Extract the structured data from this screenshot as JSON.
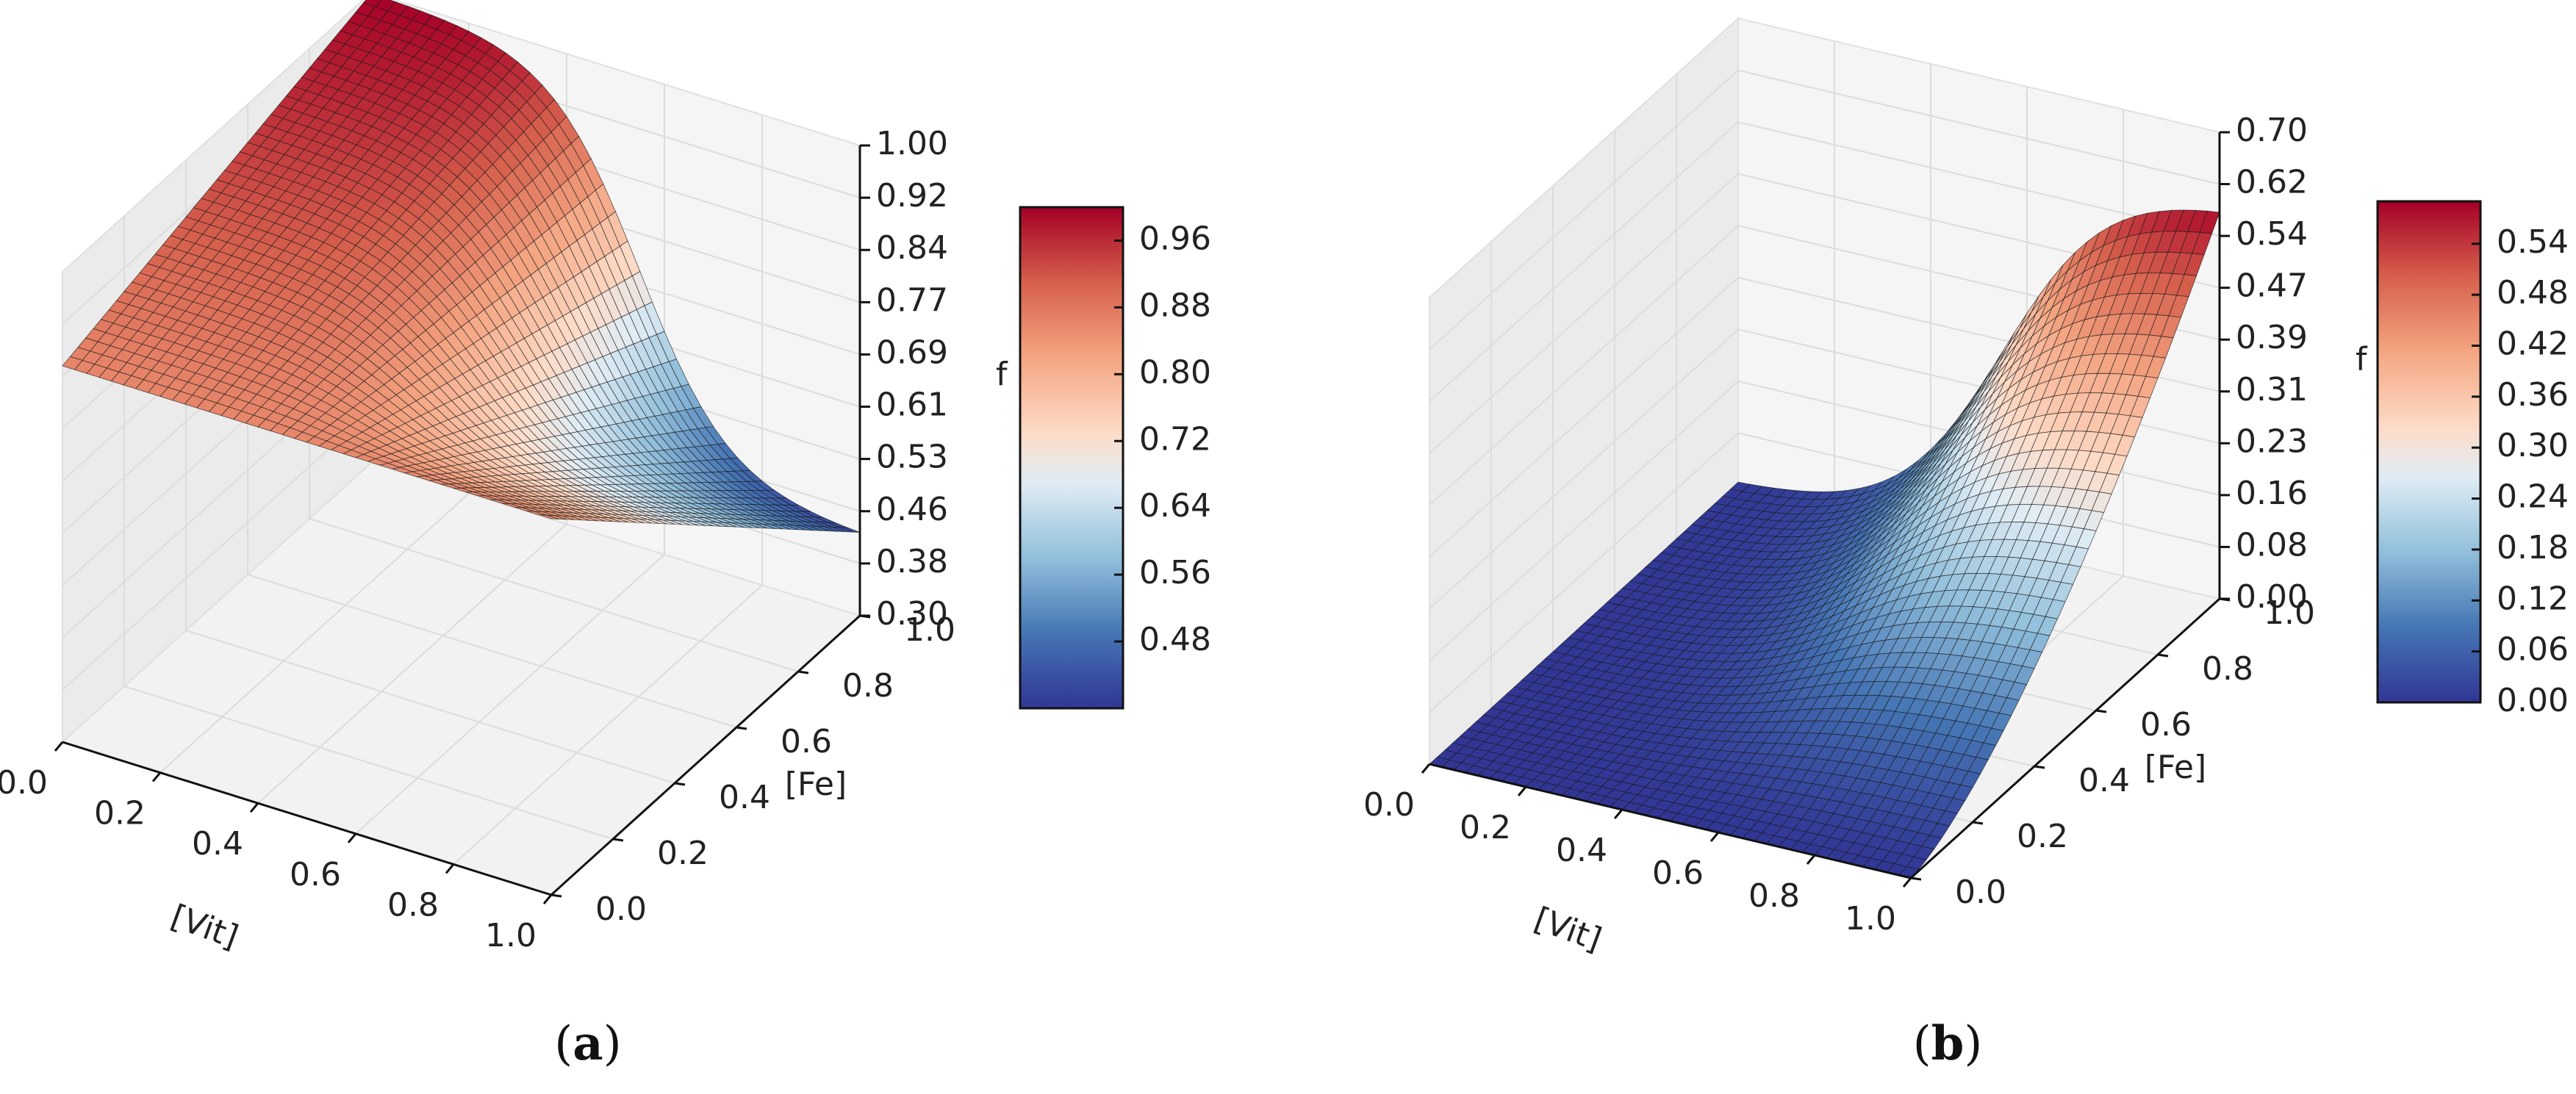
{
  "chart_data": [
    {
      "type": "surface3d",
      "caption": "a",
      "xlabel": "[Vit]",
      "ylabel": "[Fe]",
      "zlabel": "f",
      "xlim": [
        0.0,
        1.0
      ],
      "ylim": [
        0.0,
        1.0
      ],
      "zlim": [
        0.3,
        1.0
      ],
      "x_ticks": [
        "0.0",
        "0.2",
        "0.4",
        "0.6",
        "0.8",
        "1.0"
      ],
      "y_ticks": [
        "0.0",
        "0.2",
        "0.4",
        "0.6",
        "0.8",
        "1.0"
      ],
      "z_ticks": [
        "1.00",
        "0.92",
        "0.84",
        "0.77",
        "0.69",
        "0.61",
        "0.53",
        "0.46",
        "0.38",
        "0.30"
      ],
      "colorbar": {
        "ticks": [
          "0.96",
          "0.88",
          "0.80",
          "0.72",
          "0.64",
          "0.56",
          "0.48"
        ],
        "range": [
          0.4,
          1.0
        ],
        "cmap": "RdBu_r"
      },
      "surface_samples": [
        {
          "vit": 0.0,
          "fe": 0.0,
          "f": 0.86
        },
        {
          "vit": 0.0,
          "fe": 1.0,
          "f": 1.0
        },
        {
          "vit": 1.0,
          "fe": 0.0,
          "f": 0.86
        },
        {
          "vit": 1.0,
          "fe": 1.0,
          "f": 0.42
        }
      ]
    },
    {
      "type": "surface3d",
      "caption": "b",
      "xlabel": "[Vit]",
      "ylabel": "[Fe]",
      "zlabel": "f",
      "xlim": [
        0.0,
        1.0
      ],
      "ylim": [
        0.0,
        1.0
      ],
      "zlim": [
        0.0,
        0.7
      ],
      "x_ticks": [
        "0.0",
        "0.2",
        "0.4",
        "0.6",
        "0.8",
        "1.0"
      ],
      "y_ticks": [
        "0.0",
        "0.2",
        "0.4",
        "0.6",
        "0.8",
        "1.0"
      ],
      "z_ticks": [
        "0.70",
        "0.62",
        "0.54",
        "0.47",
        "0.39",
        "0.31",
        "0.23",
        "0.16",
        "0.08",
        "0.00"
      ],
      "colorbar": {
        "ticks": [
          "0.54",
          "0.48",
          "0.42",
          "0.36",
          "0.30",
          "0.24",
          "0.18",
          "0.12",
          "0.06",
          "0.00"
        ],
        "range": [
          0.0,
          0.59
        ],
        "cmap": "RdBu_r"
      },
      "surface_samples": [
        {
          "vit": 0.0,
          "fe": 0.0,
          "f": 0.0
        },
        {
          "vit": 0.0,
          "fe": 1.0,
          "f": 0.0
        },
        {
          "vit": 1.0,
          "fe": 0.0,
          "f": 0.0
        },
        {
          "vit": 1.0,
          "fe": 1.0,
          "f": 0.59
        }
      ]
    }
  ]
}
